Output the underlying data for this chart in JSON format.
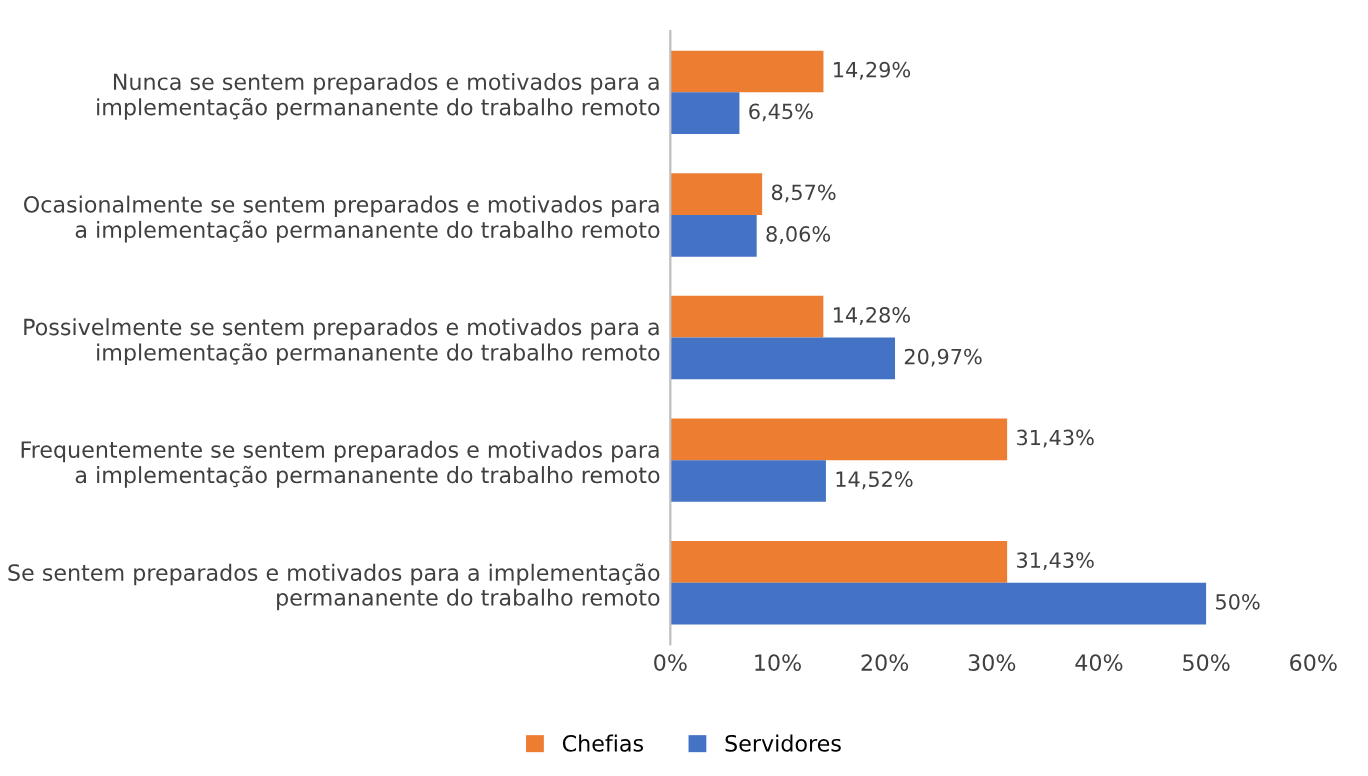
{
  "chart_data": {
    "type": "bar",
    "orientation": "horizontal",
    "categories": [
      "Nunca se sentem preparados e motivados para a\nimplementação permananente do trabalho remoto",
      "Ocasionalmente se sentem preparados e motivados para\na implementação permananente do trabalho remoto",
      "Possivelmente se sentem preparados e motivados para a\nimplementação permananente do trabalho remoto",
      "Frequentemente se sentem preparados e motivados para\na implementação permananente do trabalho remoto",
      "Se sentem preparados e motivados para a implementação\npermananente do trabalho remoto"
    ],
    "series": [
      {
        "name": "Chefias",
        "color": "#ed7d31",
        "values": [
          14.29,
          8.57,
          14.28,
          31.43,
          31.43
        ],
        "value_labels": [
          "14,29%",
          "8,57%",
          "14,28%",
          "31,43%",
          "31,43%"
        ]
      },
      {
        "name": "Servidores",
        "color": "#4472c4",
        "values": [
          6.45,
          8.06,
          20.97,
          14.52,
          50
        ],
        "value_labels": [
          "6,45%",
          "8,06%",
          "20,97%",
          "14,52%",
          "50%"
        ]
      }
    ],
    "xlim": [
      0,
      60
    ],
    "xticks": [
      {
        "value": 0,
        "label": "0%"
      },
      {
        "value": 10,
        "label": "10%"
      },
      {
        "value": 20,
        "label": "20%"
      },
      {
        "value": 30,
        "label": "30%"
      },
      {
        "value": 40,
        "label": "40%"
      },
      {
        "value": 50,
        "label": "50%"
      },
      {
        "value": 60,
        "label": "60%"
      }
    ],
    "grid": false,
    "legend": "bottom"
  }
}
